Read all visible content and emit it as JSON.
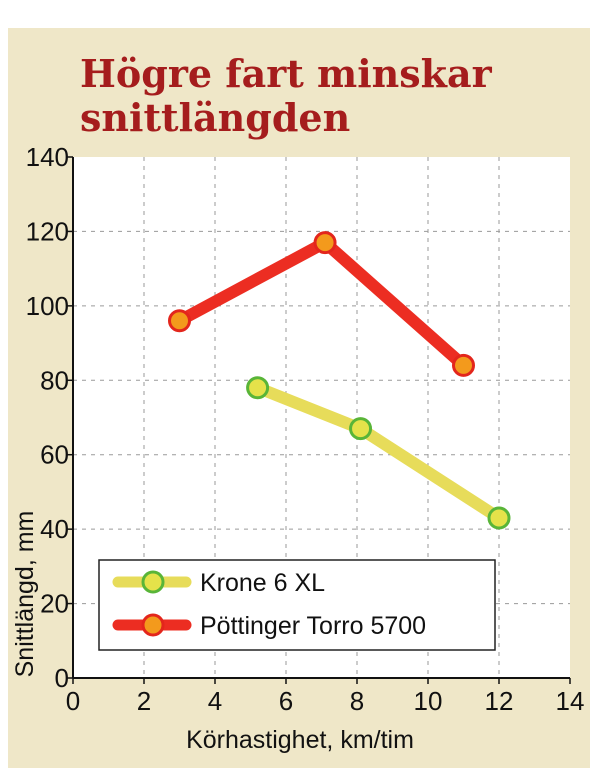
{
  "chart_data": {
    "type": "line",
    "title_line1": "Högre fart minskar",
    "title_line2": "snittlängden",
    "xlabel": "Körhastighet, km/tim",
    "ylabel": "Snittlängd, mm",
    "xlim": [
      0,
      14
    ],
    "ylim": [
      0,
      140
    ],
    "xticks": [
      0,
      2,
      4,
      6,
      8,
      10,
      12,
      14
    ],
    "yticks": [
      0,
      20,
      40,
      60,
      80,
      100,
      120,
      140
    ],
    "grid": true,
    "legend_position": "bottom-left",
    "series": [
      {
        "name": "Krone 6 XL",
        "x": [
          5.2,
          8.1,
          12.0
        ],
        "y": [
          78,
          67,
          43
        ],
        "line_color": "#e7dc5a",
        "marker_fill": "#e5e24a",
        "marker_edge": "#59b538"
      },
      {
        "name": "Pöttinger Torro 5700",
        "x": [
          3.0,
          7.1,
          11.0
        ],
        "y": [
          96,
          117,
          84
        ],
        "line_color": "#ec2d22",
        "marker_fill": "#f39a1c",
        "marker_edge": "#e3261c"
      }
    ]
  },
  "colors": {
    "background_panel": "#efe7c8",
    "plot_area": "#ffffff",
    "title": "#a51d1d"
  }
}
